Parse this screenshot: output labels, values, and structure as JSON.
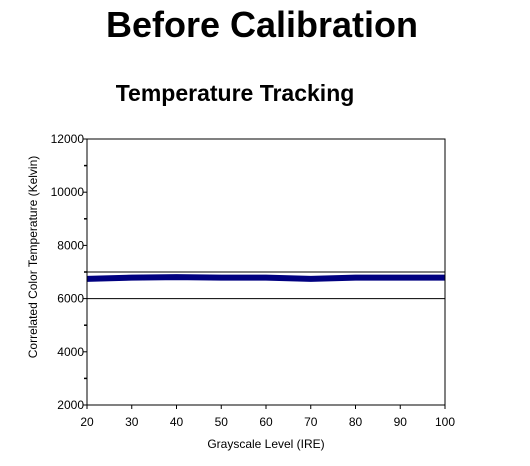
{
  "page": {
    "title": "Before Calibration"
  },
  "chart_data": {
    "type": "line",
    "title": "Temperature Tracking",
    "xlabel": "Grayscale Level (IRE)",
    "ylabel": "Correlated Color Temperature (Kelvin)",
    "xlim": [
      20,
      100
    ],
    "ylim": [
      2000,
      12000
    ],
    "xticks": [
      20,
      30,
      40,
      50,
      60,
      70,
      80,
      90,
      100
    ],
    "yticks": [
      2000,
      4000,
      6000,
      8000,
      10000,
      12000
    ],
    "yminor": [
      3000,
      5000,
      7000,
      9000,
      11000
    ],
    "reference_lines": [
      6000,
      7000
    ],
    "grid": false,
    "series": [
      {
        "color": "#000080",
        "x": [
          20,
          30,
          40,
          50,
          60,
          70,
          80,
          90,
          100
        ],
        "y": [
          6740,
          6790,
          6810,
          6790,
          6790,
          6740,
          6790,
          6790,
          6790
        ]
      }
    ]
  }
}
